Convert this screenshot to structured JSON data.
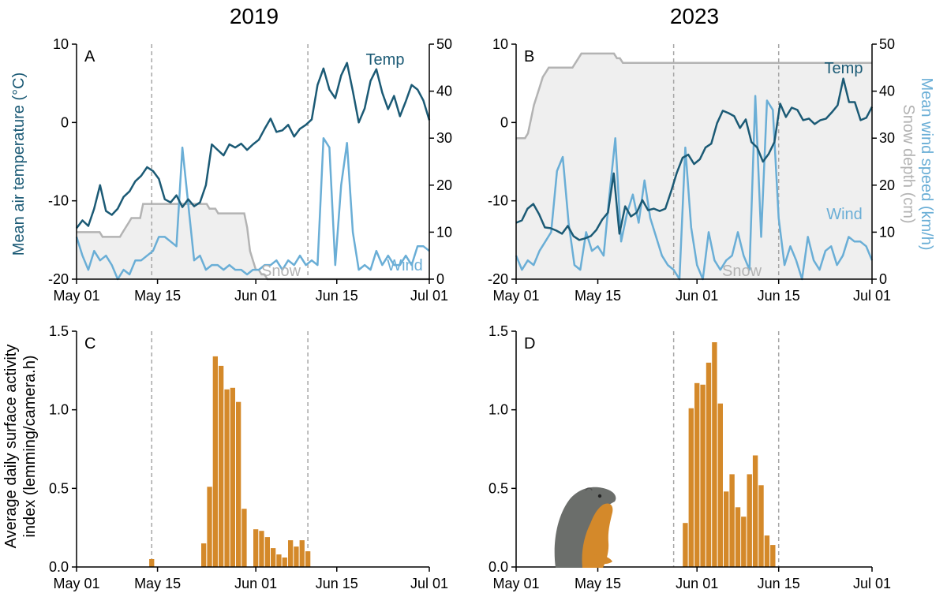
{
  "titles": {
    "left": "2019",
    "right": "2023"
  },
  "axis_labels": {
    "temp": "Mean air temperature (°C)",
    "wind": "Mean wind speed (km/h)",
    "snow": "Snow depth (cm)",
    "activity_line1": "Average daily surface activity",
    "activity_line2": "index (lemming/camera.h)"
  },
  "colors": {
    "temp": "#1b5a75",
    "wind": "#6aaed6",
    "snow": "#b3b3b3",
    "snow_fill": "#efefef",
    "bars": "#d4892a",
    "vline": "#a6a6a6"
  },
  "chart_data": [
    {
      "panel": "A",
      "type": "line",
      "year": "2019",
      "xlim": [
        "May 01",
        "Jul 01"
      ],
      "x_ticks": [
        "May 01",
        "May 15",
        "Jun 01",
        "Jun 15",
        "Jul 01"
      ],
      "x_tick_days": [
        0,
        14,
        31,
        45,
        61
      ],
      "y_left": {
        "lim": [
          -20,
          10
        ],
        "ticks": [
          -20,
          -10,
          0,
          10
        ],
        "tick_labels": [
          "-20",
          "-10",
          "0",
          "10"
        ]
      },
      "y_right": {
        "lim": [
          0,
          50
        ],
        "ticks": [
          0,
          10,
          20,
          30,
          40,
          50
        ],
        "tick_labels": [
          "0",
          "10",
          "20",
          "30",
          "40",
          "50"
        ]
      },
      "vlines_days": [
        13,
        40
      ],
      "labels": {
        "temp": "Temp",
        "wind": "Wind",
        "snow": "Snow"
      },
      "series": [
        {
          "name": "Temp",
          "axis": "left",
          "values": [
            -13.5,
            -12.5,
            -13.2,
            -11,
            -8,
            -11.3,
            -11.8,
            -11,
            -9.5,
            -8.8,
            -7.5,
            -6.8,
            -5.7,
            -6.2,
            -7.2,
            -9.8,
            -10.2,
            -9.3,
            -10.8,
            -9.8,
            -10.7,
            -10.2,
            -8,
            -2.8,
            -3.5,
            -4.2,
            -2.8,
            -3.2,
            -2.7,
            -3.5,
            -2.8,
            -2.2,
            -0.8,
            0.5,
            -1.2,
            -1,
            -0.3,
            -1.8,
            -0.8,
            -0.3,
            0.4,
            4.8,
            6.9,
            4.2,
            3.1,
            6,
            7.6,
            4,
            0,
            1.8,
            5.3,
            6.8,
            3.8,
            1.7,
            3.4,
            0.8,
            2.7,
            4.8,
            4.2,
            2.8,
            0.3
          ]
        },
        {
          "name": "Wind",
          "axis": "right",
          "values": [
            9,
            5,
            2,
            6,
            4,
            5,
            3,
            0,
            2,
            1,
            4,
            4,
            5,
            6,
            9,
            9,
            8,
            7,
            28,
            16,
            4,
            5,
            2,
            3,
            3,
            2,
            3,
            2,
            2,
            1,
            2,
            2,
            3,
            3,
            4,
            2,
            4,
            3,
            5,
            3,
            4,
            3,
            30,
            28,
            3,
            20,
            29,
            10,
            2,
            3,
            2,
            6,
            3,
            5,
            3,
            3,
            5,
            3,
            7,
            7,
            6
          ]
        },
        {
          "name": "Snow",
          "axis": "right",
          "values": [
            10,
            10,
            10,
            10,
            10,
            10,
            10,
            10,
            10,
            9,
            9,
            9,
            9,
            9,
            9,
            9,
            10,
            11,
            12,
            13,
            13,
            13,
            13,
            16,
            16,
            16,
            16,
            16,
            16,
            16,
            16,
            16,
            16,
            16,
            16,
            16,
            16,
            16,
            16,
            16,
            16,
            16,
            16,
            16,
            16,
            16,
            15,
            15,
            15,
            14,
            14,
            14,
            14,
            14,
            14,
            14,
            14,
            14,
            14,
            11,
            6,
            4,
            2,
            2,
            1,
            1,
            0,
            0,
            0,
            0,
            0,
            0,
            0,
            0,
            0,
            0,
            0,
            0,
            0,
            0,
            0,
            0,
            0,
            0,
            0,
            0,
            0,
            0,
            0,
            0,
            0,
            0,
            0,
            0,
            0,
            0,
            0,
            0,
            0,
            0,
            0,
            0,
            0,
            0,
            0,
            0,
            0,
            0,
            0,
            0,
            0,
            0,
            0,
            0,
            0,
            0,
            0,
            0,
            0,
            0,
            0,
            0,
            0
          ]
        }
      ]
    },
    {
      "panel": "B",
      "type": "line",
      "year": "2023",
      "xlim": [
        "May 01",
        "Jul 01"
      ],
      "x_ticks": [
        "May 01",
        "May 15",
        "Jun 01",
        "Jun 15",
        "Jul 01"
      ],
      "x_tick_days": [
        0,
        14,
        31,
        45,
        61
      ],
      "y_left": {
        "lim": [
          -20,
          10
        ],
        "ticks": [
          -20,
          -10,
          0,
          10
        ],
        "tick_labels": [
          "-20",
          "-10",
          "0",
          "10"
        ]
      },
      "y_right": {
        "lim": [
          0,
          50
        ],
        "ticks": [
          0,
          10,
          20,
          30,
          40,
          50
        ],
        "tick_labels": [
          "0",
          "10",
          "20",
          "30",
          "40",
          "50"
        ]
      },
      "vlines_days": [
        27,
        45
      ],
      "labels": {
        "temp": "Temp",
        "wind": "Wind",
        "snow": "Snow"
      },
      "series": [
        {
          "name": "Temp",
          "axis": "left",
          "values": [
            -12.8,
            -12.5,
            -11,
            -10.4,
            -11.7,
            -13.4,
            -13.5,
            -13.8,
            -14.2,
            -13.2,
            -14.5,
            -15,
            -14.8,
            -14.5,
            -13.7,
            -12.4,
            -11.5,
            -6.5,
            -14.2,
            -10.7,
            -12,
            -11.5,
            -9.9,
            -11.2,
            -11,
            -11.3,
            -11,
            -8.8,
            -6.4,
            -4.5,
            -4.1,
            -5.3,
            -4.7,
            -3.2,
            -2.7,
            -0.1,
            1.5,
            1.2,
            0.8,
            -0.7,
            0.4,
            -2.5,
            -3.2,
            -5,
            -4,
            -2.5,
            2.4,
            0.7,
            1.9,
            1.6,
            0.3,
            0.5,
            -0.2,
            0.3,
            0.5,
            1.3,
            2.2,
            5.6,
            2.6,
            2.6,
            0.3,
            0.6,
            2
          ]
        },
        {
          "name": "Wind",
          "axis": "right",
          "values": [
            5,
            2,
            4,
            3,
            6,
            8,
            10,
            23,
            26,
            12,
            3,
            2,
            10,
            6,
            7,
            5,
            18,
            30,
            8,
            14,
            18,
            12,
            21,
            13,
            9,
            5,
            3,
            2,
            0,
            28,
            11,
            3,
            0,
            10,
            4,
            2,
            4,
            5,
            10,
            5,
            2,
            39,
            9,
            38,
            36,
            13,
            3,
            7,
            4,
            0,
            9,
            4,
            2,
            6,
            7,
            3,
            5,
            9,
            8,
            8,
            7,
            4
          ]
        },
        {
          "name": "Snow",
          "axis": "right",
          "values": [
            30,
            30,
            30,
            30,
            31,
            34,
            37,
            39,
            41,
            43,
            44,
            45,
            45,
            45,
            45,
            45,
            45,
            45,
            45,
            45,
            46,
            47,
            48,
            48,
            48,
            48,
            48,
            48,
            48,
            48,
            48,
            48,
            48,
            48,
            47,
            47,
            46,
            46,
            46,
            46,
            46,
            46,
            46,
            46,
            46,
            46,
            46,
            46,
            46,
            46,
            46,
            46,
            46,
            46,
            46,
            46,
            46,
            46,
            46,
            46,
            46,
            46,
            46,
            46,
            46,
            46,
            46,
            46,
            46,
            46,
            46,
            46,
            46,
            46,
            46,
            46,
            46,
            46,
            46,
            46,
            46,
            46,
            46,
            46,
            46,
            46,
            46,
            46,
            46,
            46,
            46,
            46,
            46,
            46,
            46,
            46,
            46,
            46,
            46,
            46,
            46,
            46,
            46,
            46,
            46,
            46,
            46,
            46,
            46,
            46,
            46,
            46,
            46,
            46,
            46,
            46,
            46,
            46,
            46,
            46,
            46
          ]
        }
      ]
    },
    {
      "panel": "C",
      "type": "bar",
      "year": "2019",
      "xlim": [
        "May 01",
        "Jul 01"
      ],
      "x_ticks": [
        "May 01",
        "May 15",
        "Jun 01",
        "Jun 15",
        "Jul 01"
      ],
      "x_tick_days": [
        0,
        14,
        31,
        45,
        61
      ],
      "y_left": {
        "lim": [
          0,
          1.5
        ],
        "ticks": [
          0,
          0.5,
          1,
          1.5
        ],
        "tick_labels": [
          "0.0",
          "0.5",
          "1.0",
          "1.5"
        ]
      },
      "vlines_days": [
        13,
        40
      ],
      "bars": [
        {
          "day": 13,
          "value": 0.05
        },
        {
          "day": 22,
          "value": 0.15
        },
        {
          "day": 23,
          "value": 0.51
        },
        {
          "day": 24,
          "value": 1.34
        },
        {
          "day": 25,
          "value": 1.28
        },
        {
          "day": 26,
          "value": 1.13
        },
        {
          "day": 27,
          "value": 1.14
        },
        {
          "day": 28,
          "value": 1.05
        },
        {
          "day": 29,
          "value": 0.37
        },
        {
          "day": 31,
          "value": 0.24
        },
        {
          "day": 32,
          "value": 0.23
        },
        {
          "day": 33,
          "value": 0.19
        },
        {
          "day": 34,
          "value": 0.12
        },
        {
          "day": 35,
          "value": 0.08
        },
        {
          "day": 36,
          "value": 0.06
        },
        {
          "day": 37,
          "value": 0.17
        },
        {
          "day": 38,
          "value": 0.13
        },
        {
          "day": 39,
          "value": 0.17
        },
        {
          "day": 40,
          "value": 0.1
        }
      ]
    },
    {
      "panel": "D",
      "type": "bar",
      "year": "2023",
      "xlim": [
        "May 01",
        "Jul 01"
      ],
      "x_ticks": [
        "May 01",
        "May 15",
        "Jun 01",
        "Jun 15",
        "Jul 01"
      ],
      "x_tick_days": [
        0,
        14,
        31,
        45,
        61
      ],
      "y_left": {
        "lim": [
          0,
          1.5
        ],
        "ticks": [
          0,
          0.5,
          1,
          1.5
        ],
        "tick_labels": [
          "0.0",
          "0.5",
          "1.0",
          "1.5"
        ]
      },
      "vlines_days": [
        27,
        45
      ],
      "bars": [
        {
          "day": 29,
          "value": 0.28
        },
        {
          "day": 30,
          "value": 1.01
        },
        {
          "day": 31,
          "value": 1.17
        },
        {
          "day": 32,
          "value": 1.16
        },
        {
          "day": 33,
          "value": 1.3
        },
        {
          "day": 34,
          "value": 1.43
        },
        {
          "day": 35,
          "value": 1.04
        },
        {
          "day": 36,
          "value": 0.48
        },
        {
          "day": 37,
          "value": 0.59
        },
        {
          "day": 38,
          "value": 0.38
        },
        {
          "day": 39,
          "value": 0.32
        },
        {
          "day": 40,
          "value": 0.59
        },
        {
          "day": 41,
          "value": 0.71
        },
        {
          "day": 42,
          "value": 0.52
        },
        {
          "day": 43,
          "value": 0.2
        },
        {
          "day": 44,
          "value": 0.14
        }
      ]
    }
  ]
}
